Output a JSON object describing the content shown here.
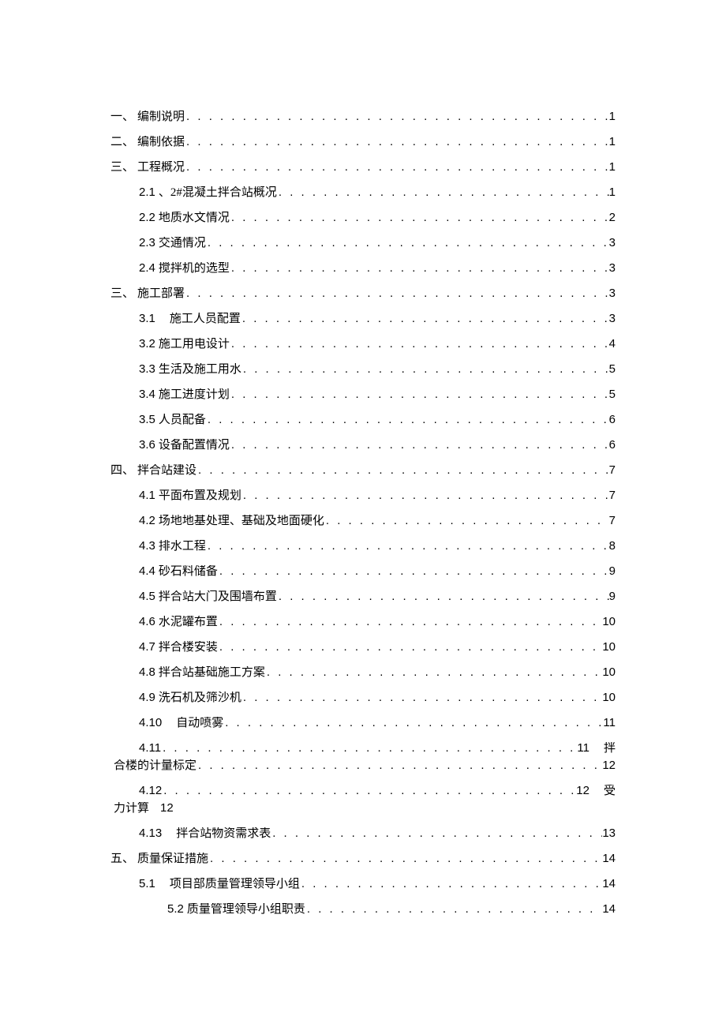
{
  "colors": {
    "text": "#000000",
    "background": "#ffffff"
  },
  "typography": {
    "body_font": "SimSun",
    "number_font": "Arial",
    "font_size_pt": 11
  },
  "toc": [
    {
      "level": 1,
      "num": "一、",
      "num_cn": true,
      "title": "编制说明",
      "page": "1"
    },
    {
      "level": 1,
      "num": "二、",
      "num_cn": true,
      "title": "编制依据",
      "page": "1"
    },
    {
      "level": 1,
      "num": "三、",
      "num_cn": true,
      "title": "工程概况",
      "page": "1"
    },
    {
      "level": 2,
      "num": "2.1",
      "title": "、2#混凝土拌合站概况",
      "page": "1"
    },
    {
      "level": 2,
      "num": "2.2",
      "title": "地质水文情况",
      "page": "2"
    },
    {
      "level": 2,
      "num": "2.3",
      "title": "交通情况",
      "page": "3"
    },
    {
      "level": 2,
      "num": "2.4",
      "title": "搅拌机的选型",
      "page": "3"
    },
    {
      "level": 1,
      "num": "三、",
      "num_cn": true,
      "title": "施工部署",
      "page": "3"
    },
    {
      "level": 2,
      "num": "3.1",
      "title": "施工人员配置",
      "page": "3",
      "title_pad": true
    },
    {
      "level": 2,
      "num": "3.2",
      "title": "施工用电设计",
      "page": "4"
    },
    {
      "level": 2,
      "num": "3.3",
      "title": "生活及施工用水",
      "page": "5"
    },
    {
      "level": 2,
      "num": "3.4",
      "title": "施工进度计划",
      "page": "5"
    },
    {
      "level": 2,
      "num": "3.5",
      "title": "人员配备",
      "page": "6"
    },
    {
      "level": 2,
      "num": "3.6",
      "title": "设备配置情况",
      "page": "6"
    },
    {
      "level": 1,
      "num": "四、",
      "num_cn": true,
      "title": "拌合站建设",
      "page": "7"
    },
    {
      "level": 2,
      "num": "4.1",
      "title": "平面布置及规划",
      "page": "7"
    },
    {
      "level": 2,
      "num": "4.2",
      "title": "场地地基处理、基础及地面硬化",
      "page": "7"
    },
    {
      "level": 2,
      "num": "4.3",
      "title": "排水工程",
      "page": "8"
    },
    {
      "level": 2,
      "num": "4.4",
      "title": "砂石料储备",
      "page": "9"
    },
    {
      "level": 2,
      "num": "4.5",
      "title": "拌合站大门及围墙布置",
      "page": "9"
    },
    {
      "level": 2,
      "num": "4.6",
      "title": "水泥罐布置",
      "page": "10"
    },
    {
      "level": 2,
      "num": "4.7",
      "title": "拌合楼安装",
      "page": "10"
    },
    {
      "level": 2,
      "num": "4.8",
      "title": "拌合站基础施工方案",
      "page": "10"
    },
    {
      "level": 2,
      "num": "4.9",
      "title": "洗石机及筛沙机",
      "page": "10"
    },
    {
      "level": 2,
      "num": "4.10",
      "title": "自动喷雾",
      "page": "11",
      "title_pad": true
    }
  ],
  "wrap_entries": [
    {
      "row1_num": "4.11",
      "row1_page": "11",
      "row1_right": "拌",
      "row2_title": "合楼的计量标定",
      "row2_page": "12",
      "indent_l2": true
    },
    {
      "row1_num": "4.12",
      "row1_page": "12",
      "row1_right": "受",
      "row2_title": "力计算",
      "row2_page_inline": "12",
      "indent_l2": true
    }
  ],
  "toc_after": [
    {
      "level": 2,
      "num": "4.13",
      "title": "拌合站物资需求表",
      "page": "13",
      "title_pad": true
    },
    {
      "level": 1,
      "num": "五、",
      "num_cn": true,
      "title": "质量保证措施",
      "page": "14"
    },
    {
      "level": 2,
      "num": "5.1",
      "title": "项目部质量管理领导小组",
      "page": "14",
      "title_pad": true
    },
    {
      "level": 3,
      "num": "5.2",
      "title": "质量管理领导小组职责",
      "page": "14"
    }
  ]
}
